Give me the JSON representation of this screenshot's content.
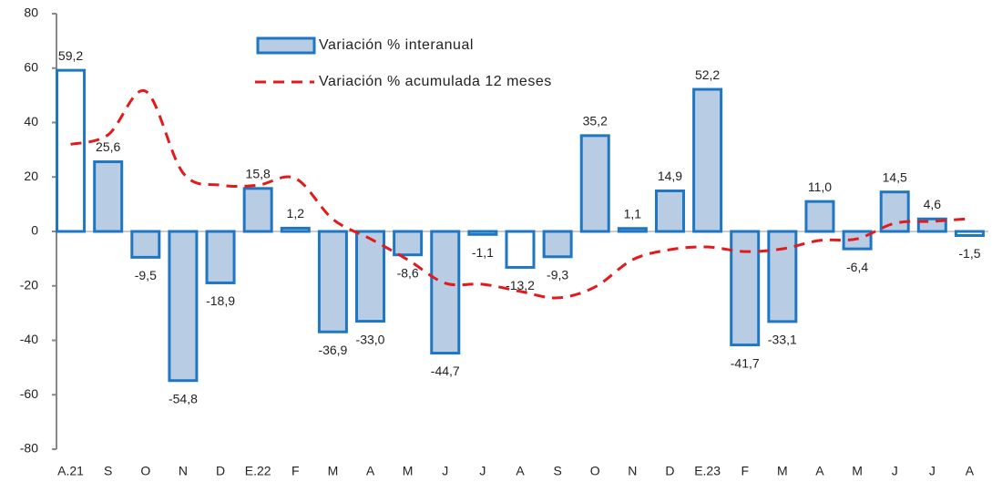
{
  "chart_data": {
    "type": "bar-line",
    "categories": [
      "A.21",
      "S",
      "O",
      "N",
      "D",
      "E.22",
      "F",
      "M",
      "A",
      "M",
      "J",
      "J",
      "A",
      "S",
      "O",
      "N",
      "D",
      "E.23",
      "F",
      "M",
      "A",
      "M",
      "J",
      "J",
      "A"
    ],
    "series": [
      {
        "name": "Variación % interanual",
        "type": "bar",
        "color": "#b8cce4",
        "edge_color": "#1f77c4",
        "point_colors": [
          "#ffffff",
          "#b8cce4",
          "#b8cce4",
          "#b8cce4",
          "#b8cce4",
          "#b8cce4",
          "#b8cce4",
          "#b8cce4",
          "#b8cce4",
          "#b8cce4",
          "#b8cce4",
          "#ffffff",
          "#ffffff",
          "#b8cce4",
          "#b8cce4",
          "#b8cce4",
          "#b8cce4",
          "#b8cce4",
          "#b8cce4",
          "#b8cce4",
          "#b8cce4",
          "#b8cce4",
          "#b8cce4",
          "#b8cce4",
          "#ffffff"
        ],
        "values": [
          59.2,
          25.6,
          -9.5,
          -54.8,
          -18.9,
          15.8,
          1.2,
          -36.9,
          -33.0,
          -8.6,
          -44.7,
          -1.1,
          -13.2,
          -9.3,
          35.2,
          1.1,
          14.9,
          52.2,
          -41.7,
          -33.1,
          11.0,
          -6.4,
          14.5,
          4.6,
          -1.5
        ],
        "value_labels": [
          "59,2",
          "25,6",
          "-9,5",
          "-54,8",
          "-18,9",
          "15,8",
          "1,2",
          "-36,9",
          "-33,0",
          "-8,6",
          "-44,7",
          "-1,1",
          "-13,2",
          "-9,3",
          "35,2",
          "1,1",
          "14,9",
          "52,2",
          "-41,7",
          "-33,1",
          "11,0",
          "-6,4",
          "14,5",
          "4,6",
          "-1,5"
        ]
      },
      {
        "name": "Variación % acumulada 12 meses",
        "type": "line",
        "color": "#e31a1c",
        "dashed": true,
        "values": [
          32,
          35.5,
          51.5,
          21.5,
          17,
          17,
          19.5,
          4.5,
          -2.7,
          -10.4,
          -19,
          -19.4,
          -22,
          -24.4,
          -20.4,
          -10.4,
          -6.7,
          -5.7,
          -7.4,
          -6.4,
          -3.3,
          -2.7,
          3,
          3.7,
          4.7
        ]
      }
    ],
    "ylim": [
      -80,
      80
    ],
    "yticks": [
      -80,
      -60,
      -40,
      -20,
      0,
      20,
      40,
      60,
      80
    ]
  }
}
